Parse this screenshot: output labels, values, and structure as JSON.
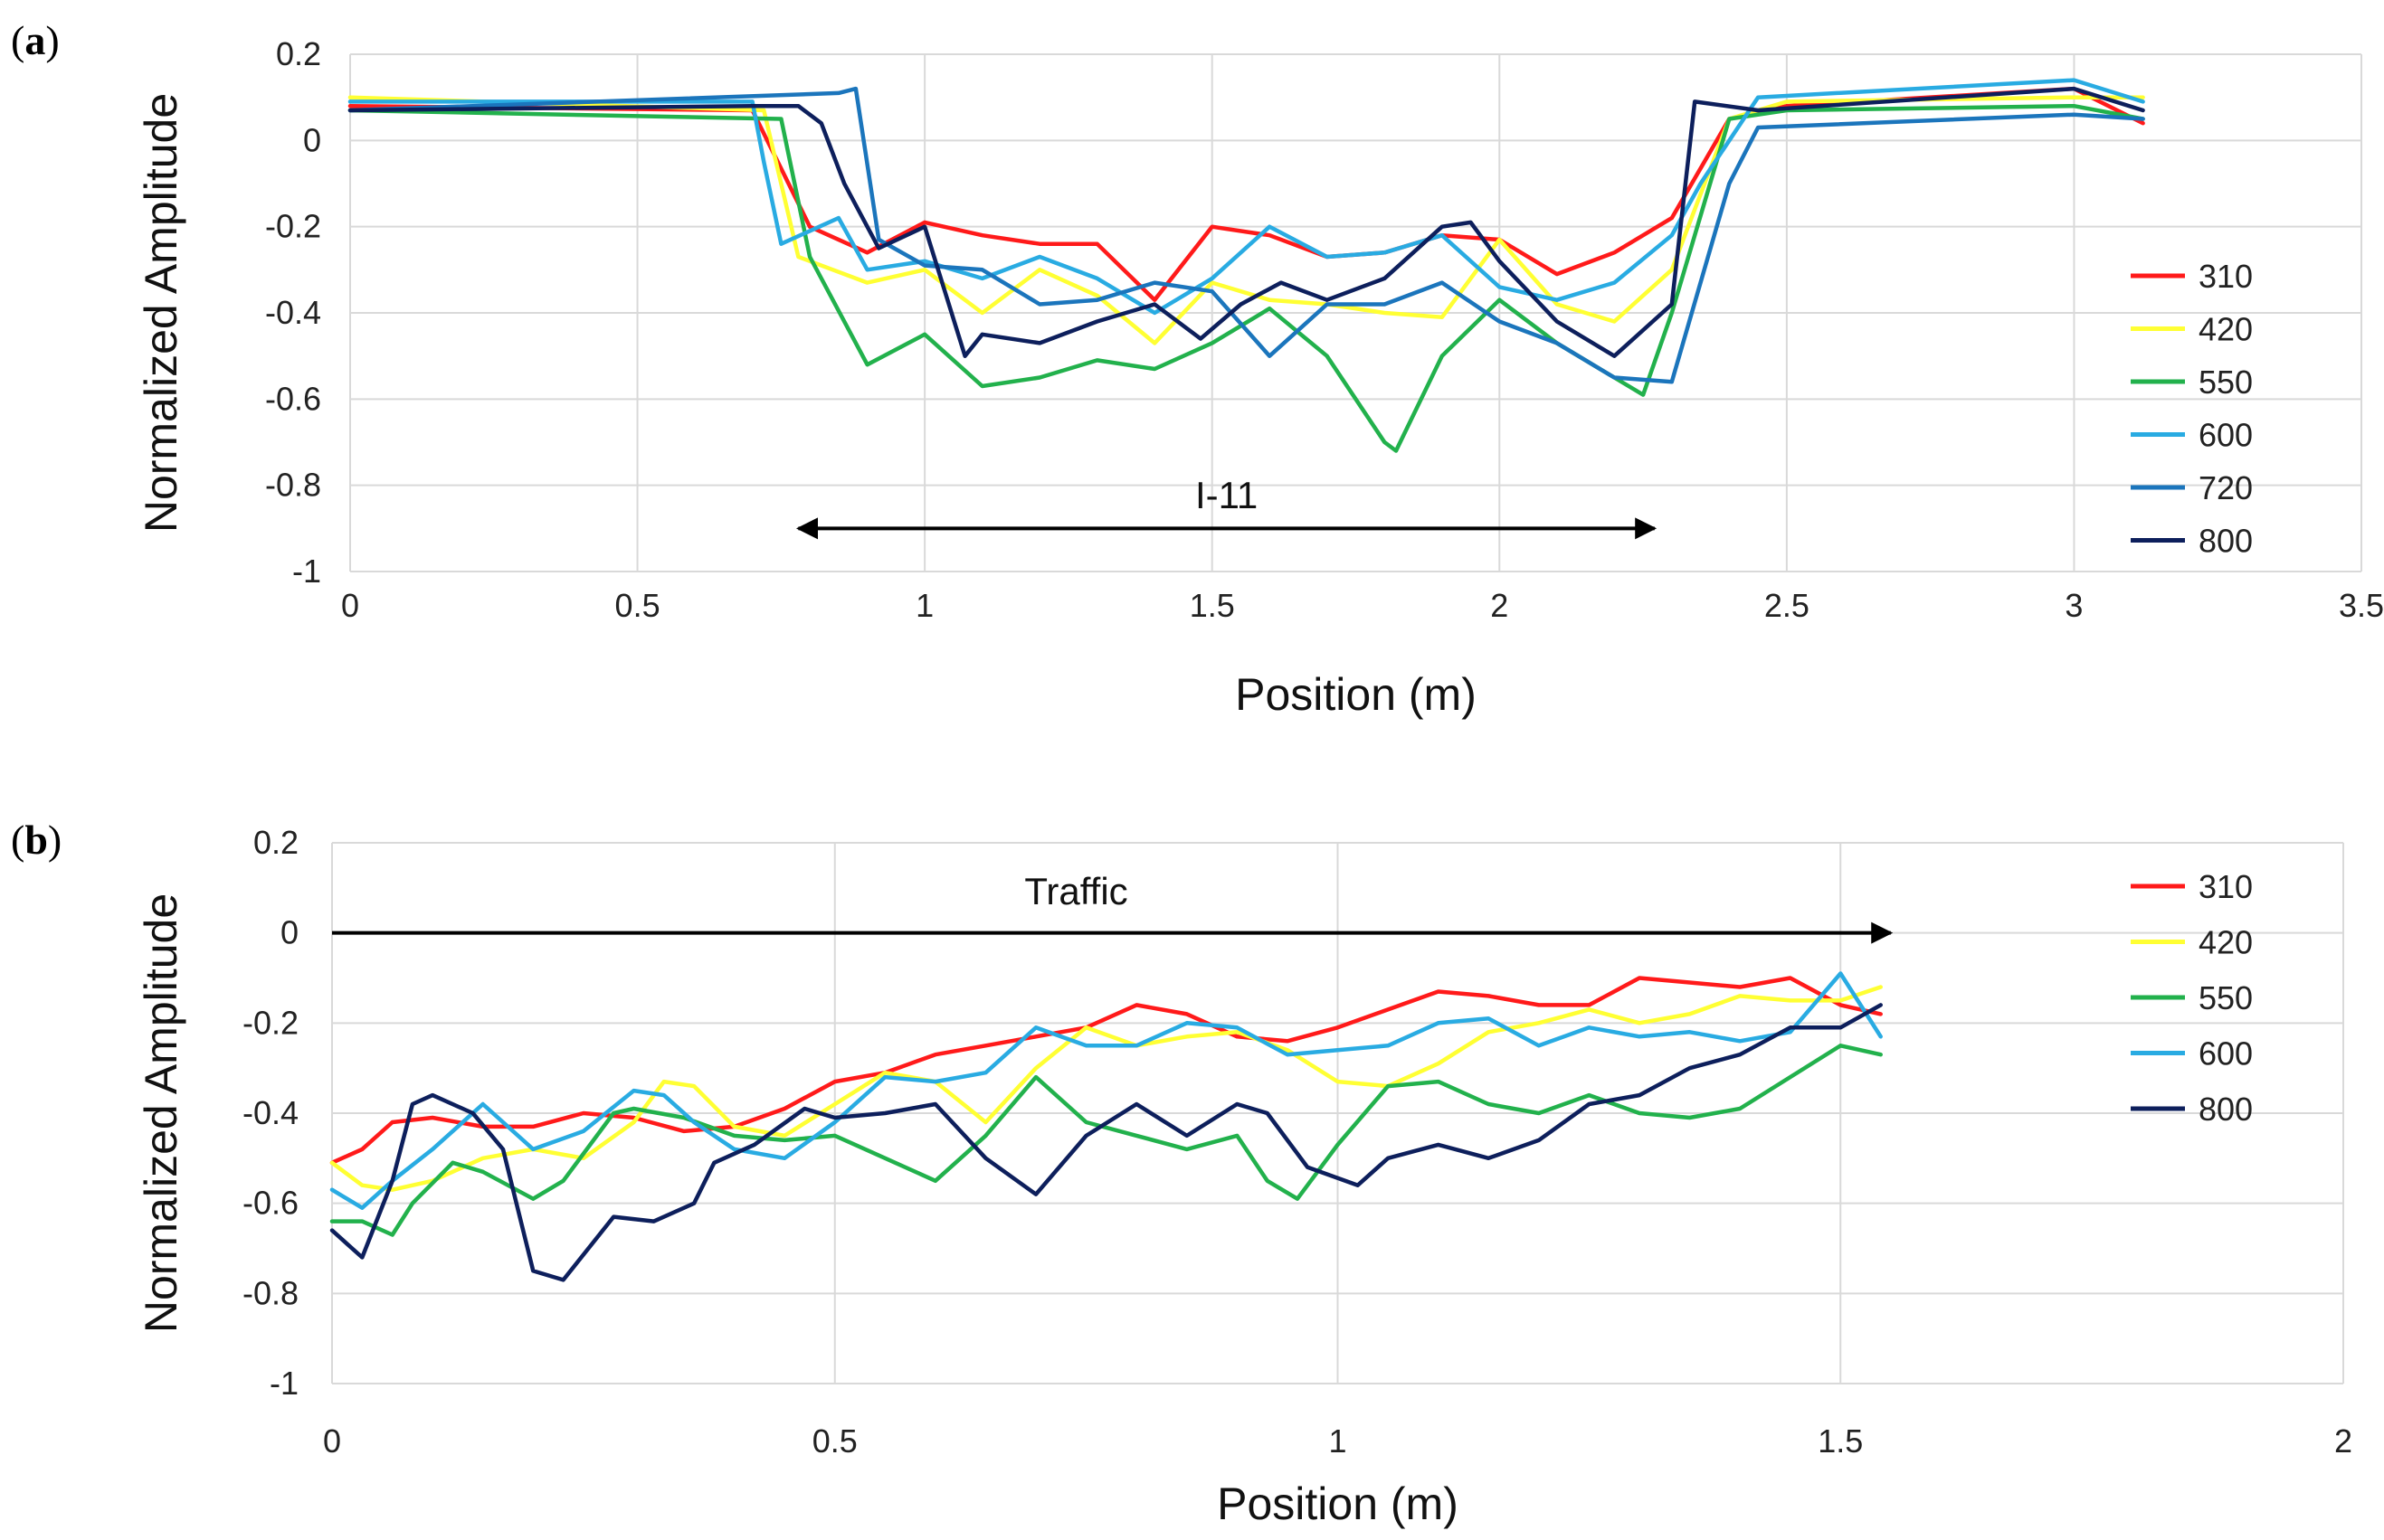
{
  "chart_data": [
    {
      "panel": "a",
      "type": "line",
      "xlabel": "Position (m)",
      "ylabel": "Normalized Amplitude",
      "xlim": [
        0,
        3.5
      ],
      "ylim": [
        -1,
        0.2
      ],
      "xticks": [
        "0",
        "0.5",
        "1",
        "1.5",
        "2",
        "2.5",
        "3",
        "3.5"
      ],
      "yticks": [
        "0.2",
        "0",
        "-0.2",
        "-0.4",
        "-0.6",
        "-0.8",
        "-1"
      ],
      "grid": true,
      "legend_position": "right",
      "annotation": {
        "text": "I-11",
        "arrow": "double",
        "x_start": 0.78,
        "x_end": 2.27,
        "y": -0.9
      },
      "series": [
        {
          "name": "310",
          "color": "#ff1a1a",
          "x": [
            0,
            0.7,
            0.8,
            0.9,
            1.0,
            1.1,
            1.2,
            1.3,
            1.4,
            1.5,
            1.6,
            1.7,
            1.8,
            1.9,
            2.0,
            2.1,
            2.2,
            2.3,
            2.4,
            2.5,
            3.0,
            3.12
          ],
          "y": [
            0.08,
            0.07,
            -0.2,
            -0.26,
            -0.19,
            -0.22,
            -0.24,
            -0.24,
            -0.37,
            -0.2,
            -0.22,
            -0.27,
            -0.26,
            -0.22,
            -0.23,
            -0.31,
            -0.26,
            -0.18,
            0.05,
            0.08,
            0.12,
            0.04
          ]
        },
        {
          "name": "420",
          "color": "#ffff33",
          "x": [
            0,
            0.72,
            0.78,
            0.9,
            1.0,
            1.1,
            1.2,
            1.3,
            1.4,
            1.5,
            1.6,
            1.7,
            1.8,
            1.9,
            2.0,
            2.1,
            2.2,
            2.3,
            2.4,
            2.5,
            3.0,
            3.12
          ],
          "y": [
            0.1,
            0.07,
            -0.27,
            -0.33,
            -0.3,
            -0.4,
            -0.3,
            -0.36,
            -0.47,
            -0.33,
            -0.37,
            -0.38,
            -0.4,
            -0.41,
            -0.23,
            -0.38,
            -0.42,
            -0.3,
            0.05,
            0.09,
            0.1,
            0.1
          ]
        },
        {
          "name": "550",
          "color": "#22b14c",
          "x": [
            0,
            0.75,
            0.8,
            0.9,
            1.0,
            1.1,
            1.2,
            1.3,
            1.4,
            1.5,
            1.6,
            1.7,
            1.8,
            1.82,
            1.9,
            2.0,
            2.1,
            2.2,
            2.25,
            2.3,
            2.4,
            2.5,
            3.0,
            3.12
          ],
          "y": [
            0.07,
            0.05,
            -0.27,
            -0.52,
            -0.45,
            -0.57,
            -0.55,
            -0.51,
            -0.53,
            -0.47,
            -0.39,
            -0.5,
            -0.7,
            -0.72,
            -0.5,
            -0.37,
            -0.47,
            -0.55,
            -0.59,
            -0.4,
            0.05,
            0.07,
            0.08,
            0.05
          ]
        },
        {
          "name": "600",
          "color": "#29abe2",
          "x": [
            0,
            0.7,
            0.72,
            0.75,
            0.85,
            0.9,
            1.0,
            1.1,
            1.2,
            1.3,
            1.4,
            1.5,
            1.6,
            1.7,
            1.8,
            1.9,
            2.0,
            2.1,
            2.2,
            2.3,
            2.35,
            2.45,
            3.0,
            3.12
          ],
          "y": [
            0.09,
            0.09,
            -0.05,
            -0.24,
            -0.18,
            -0.3,
            -0.28,
            -0.32,
            -0.27,
            -0.32,
            -0.4,
            -0.32,
            -0.2,
            -0.27,
            -0.26,
            -0.22,
            -0.34,
            -0.37,
            -0.33,
            -0.22,
            -0.1,
            0.1,
            0.14,
            0.09
          ]
        },
        {
          "name": "720",
          "color": "#1b75bc",
          "x": [
            0,
            0.85,
            0.88,
            0.92,
            1.0,
            1.1,
            1.2,
            1.3,
            1.4,
            1.5,
            1.6,
            1.7,
            1.8,
            1.9,
            2.0,
            2.1,
            2.2,
            2.3,
            2.4,
            2.45,
            3.0,
            3.12
          ],
          "y": [
            0.07,
            0.11,
            0.12,
            -0.23,
            -0.29,
            -0.3,
            -0.38,
            -0.37,
            -0.33,
            -0.35,
            -0.5,
            -0.38,
            -0.38,
            -0.33,
            -0.42,
            -0.47,
            -0.55,
            -0.56,
            -0.1,
            0.03,
            0.06,
            0.05
          ]
        },
        {
          "name": "800",
          "color": "#0d1f5c",
          "x": [
            0,
            0.7,
            0.78,
            0.82,
            0.86,
            0.92,
            1.0,
            1.07,
            1.1,
            1.2,
            1.3,
            1.4,
            1.48,
            1.55,
            1.62,
            1.7,
            1.8,
            1.9,
            1.95,
            2.0,
            2.1,
            2.2,
            2.3,
            2.34,
            2.45,
            3.0,
            3.12
          ],
          "y": [
            0.07,
            0.08,
            0.08,
            0.04,
            -0.1,
            -0.25,
            -0.2,
            -0.5,
            -0.45,
            -0.47,
            -0.42,
            -0.38,
            -0.46,
            -0.38,
            -0.33,
            -0.37,
            -0.32,
            -0.2,
            -0.19,
            -0.28,
            -0.42,
            -0.5,
            -0.38,
            0.09,
            0.07,
            0.12,
            0.07
          ]
        }
      ]
    },
    {
      "panel": "b",
      "type": "line",
      "xlabel": "Position (m)",
      "ylabel": "Normalized Amplitude",
      "xlim": [
        0,
        2
      ],
      "ylim": [
        -1,
        0.2
      ],
      "xticks": [
        "0",
        "0.5",
        "1",
        "1.5",
        "2"
      ],
      "yticks": [
        "0.2",
        "0",
        "-0.2",
        "-0.4",
        "-0.6",
        "-0.8",
        "-1"
      ],
      "grid": true,
      "legend_position": "top-right",
      "annotation": {
        "text": "Traffic",
        "arrow": "single",
        "x_start": 0,
        "x_end": 1.55,
        "y": 0
      },
      "series": [
        {
          "name": "310",
          "color": "#ff1a1a",
          "x": [
            0,
            0.03,
            0.06,
            0.1,
            0.15,
            0.2,
            0.25,
            0.3,
            0.35,
            0.4,
            0.45,
            0.5,
            0.55,
            0.6,
            0.65,
            0.7,
            0.75,
            0.8,
            0.85,
            0.9,
            0.95,
            1.0,
            1.05,
            1.1,
            1.15,
            1.2,
            1.25,
            1.3,
            1.35,
            1.4,
            1.45,
            1.5,
            1.54
          ],
          "y": [
            -0.51,
            -0.48,
            -0.42,
            -0.41,
            -0.43,
            -0.43,
            -0.4,
            -0.41,
            -0.44,
            -0.43,
            -0.39,
            -0.33,
            -0.31,
            -0.27,
            -0.25,
            -0.23,
            -0.21,
            -0.16,
            -0.18,
            -0.23,
            -0.24,
            -0.21,
            -0.17,
            -0.13,
            -0.14,
            -0.16,
            -0.16,
            -0.1,
            -0.11,
            -0.12,
            -0.1,
            -0.16,
            -0.18
          ]
        },
        {
          "name": "420",
          "color": "#ffff33",
          "x": [
            0,
            0.03,
            0.06,
            0.1,
            0.15,
            0.2,
            0.25,
            0.3,
            0.33,
            0.36,
            0.4,
            0.45,
            0.5,
            0.55,
            0.6,
            0.65,
            0.7,
            0.75,
            0.8,
            0.85,
            0.9,
            0.95,
            1.0,
            1.05,
            1.1,
            1.15,
            1.2,
            1.25,
            1.3,
            1.35,
            1.4,
            1.45,
            1.5,
            1.54
          ],
          "y": [
            -0.51,
            -0.56,
            -0.57,
            -0.55,
            -0.5,
            -0.48,
            -0.5,
            -0.42,
            -0.33,
            -0.34,
            -0.43,
            -0.45,
            -0.38,
            -0.31,
            -0.33,
            -0.42,
            -0.3,
            -0.21,
            -0.25,
            -0.23,
            -0.22,
            -0.26,
            -0.33,
            -0.34,
            -0.29,
            -0.22,
            -0.2,
            -0.17,
            -0.2,
            -0.18,
            -0.14,
            -0.15,
            -0.15,
            -0.12
          ]
        },
        {
          "name": "550",
          "color": "#22b14c",
          "x": [
            0,
            0.03,
            0.06,
            0.08,
            0.12,
            0.15,
            0.2,
            0.23,
            0.28,
            0.3,
            0.35,
            0.4,
            0.45,
            0.5,
            0.55,
            0.6,
            0.65,
            0.7,
            0.75,
            0.8,
            0.85,
            0.9,
            0.93,
            0.96,
            1.0,
            1.05,
            1.1,
            1.15,
            1.2,
            1.25,
            1.3,
            1.35,
            1.4,
            1.45,
            1.5,
            1.54
          ],
          "y": [
            -0.64,
            -0.64,
            -0.67,
            -0.6,
            -0.51,
            -0.53,
            -0.59,
            -0.55,
            -0.4,
            -0.39,
            -0.41,
            -0.45,
            -0.46,
            -0.45,
            -0.5,
            -0.55,
            -0.45,
            -0.32,
            -0.42,
            -0.45,
            -0.48,
            -0.45,
            -0.55,
            -0.59,
            -0.47,
            -0.34,
            -0.33,
            -0.38,
            -0.4,
            -0.36,
            -0.4,
            -0.41,
            -0.39,
            -0.32,
            -0.25,
            -0.27
          ]
        },
        {
          "name": "600",
          "color": "#29abe2",
          "x": [
            0,
            0.03,
            0.06,
            0.1,
            0.15,
            0.2,
            0.25,
            0.3,
            0.33,
            0.36,
            0.4,
            0.45,
            0.5,
            0.55,
            0.6,
            0.65,
            0.7,
            0.75,
            0.8,
            0.85,
            0.9,
            0.95,
            1.0,
            1.05,
            1.1,
            1.15,
            1.2,
            1.25,
            1.3,
            1.35,
            1.4,
            1.45,
            1.5,
            1.54
          ],
          "y": [
            -0.57,
            -0.61,
            -0.55,
            -0.48,
            -0.38,
            -0.48,
            -0.44,
            -0.35,
            -0.36,
            -0.42,
            -0.48,
            -0.5,
            -0.42,
            -0.32,
            -0.33,
            -0.31,
            -0.21,
            -0.25,
            -0.25,
            -0.2,
            -0.21,
            -0.27,
            -0.26,
            -0.25,
            -0.2,
            -0.19,
            -0.25,
            -0.21,
            -0.23,
            -0.22,
            -0.24,
            -0.22,
            -0.09,
            -0.23
          ]
        },
        {
          "name": "800",
          "color": "#0d1f5c",
          "x": [
            0,
            0.03,
            0.06,
            0.08,
            0.1,
            0.14,
            0.17,
            0.2,
            0.23,
            0.28,
            0.32,
            0.36,
            0.38,
            0.42,
            0.47,
            0.5,
            0.55,
            0.6,
            0.65,
            0.7,
            0.75,
            0.8,
            0.85,
            0.9,
            0.93,
            0.97,
            1.02,
            1.05,
            1.1,
            1.15,
            1.2,
            1.25,
            1.3,
            1.35,
            1.4,
            1.45,
            1.5,
            1.54
          ],
          "y": [
            -0.66,
            -0.72,
            -0.55,
            -0.38,
            -0.36,
            -0.4,
            -0.48,
            -0.75,
            -0.77,
            -0.63,
            -0.64,
            -0.6,
            -0.51,
            -0.47,
            -0.39,
            -0.41,
            -0.4,
            -0.38,
            -0.5,
            -0.58,
            -0.45,
            -0.38,
            -0.45,
            -0.38,
            -0.4,
            -0.52,
            -0.56,
            -0.5,
            -0.47,
            -0.5,
            -0.46,
            -0.38,
            -0.36,
            -0.3,
            -0.27,
            -0.21,
            -0.21,
            -0.16
          ]
        }
      ]
    }
  ],
  "panels": {
    "a": {
      "label_open": "(",
      "label_letter": "a",
      "label_close": ")"
    },
    "b": {
      "label_open": "(",
      "label_letter": "b",
      "label_close": ")"
    }
  }
}
